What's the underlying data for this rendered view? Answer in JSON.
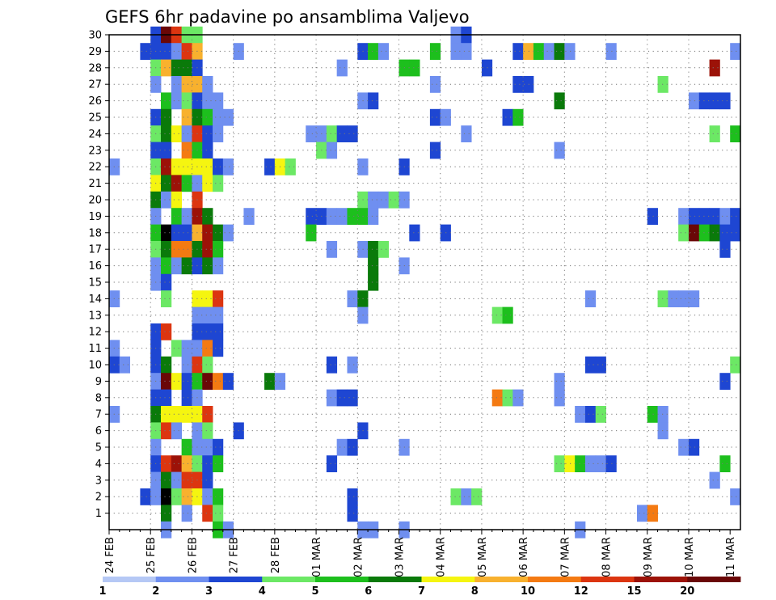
{
  "chart_data": {
    "type": "heatmap",
    "title": "GEFS 6hr padavine po ansamblima Valjevo",
    "xlabel": "",
    "ylabel": "",
    "y_ticks": [
      "1",
      "2",
      "3",
      "4",
      "5",
      "6",
      "7",
      "8",
      "9",
      "10",
      "11",
      "12",
      "13",
      "14",
      "15",
      "16",
      "17",
      "18",
      "19",
      "20",
      "21",
      "22",
      "23",
      "24",
      "25",
      "26",
      "27",
      "28",
      "29",
      "30"
    ],
    "x_ticks": [
      "24 FEB",
      "25 FEB",
      "26 FEB",
      "27 FEB",
      "28 FEB",
      "01 MAR",
      "02 MAR",
      "03 MAR",
      "04 MAR",
      "05 MAR",
      "06 MAR",
      "07 MAR",
      "08 MAR",
      "09 MAR",
      "10 MAR",
      "11 MAR"
    ],
    "time_step_hours": 6,
    "grid": true,
    "colorbar": {
      "bounds": [
        "1",
        "2",
        "3",
        "4",
        "5",
        "6",
        "7",
        "8",
        "10",
        "12",
        "15",
        "20"
      ],
      "colors": [
        "#b5c8f5",
        "#6f8ff0",
        "#1e46d2",
        "#6ce865",
        "#1dbf1d",
        "#0a7a0a",
        "#f5f510",
        "#f8b12e",
        "#f47a12",
        "#dc3510",
        "#9c1208",
        "#6a0707"
      ]
    },
    "cells": [
      [
        30,
        4,
        2
      ],
      [
        30,
        5,
        11
      ],
      [
        30,
        6,
        9
      ],
      [
        30,
        7,
        3
      ],
      [
        30,
        8,
        3
      ],
      [
        30,
        33,
        1
      ],
      [
        30,
        34,
        2
      ],
      [
        29,
        3,
        2
      ],
      [
        29,
        4,
        2
      ],
      [
        29,
        5,
        2
      ],
      [
        29,
        6,
        1
      ],
      [
        29,
        7,
        9
      ],
      [
        29,
        8,
        7
      ],
      [
        29,
        12,
        1
      ],
      [
        29,
        24,
        2
      ],
      [
        29,
        25,
        4
      ],
      [
        29,
        26,
        1
      ],
      [
        29,
        31,
        4
      ],
      [
        29,
        33,
        1
      ],
      [
        29,
        34,
        1
      ],
      [
        29,
        39,
        2
      ],
      [
        29,
        40,
        7
      ],
      [
        29,
        41,
        4
      ],
      [
        29,
        42,
        1
      ],
      [
        29,
        43,
        5
      ],
      [
        29,
        44,
        1
      ],
      [
        29,
        48,
        1
      ],
      [
        29,
        60,
        1
      ],
      [
        28,
        4,
        3
      ],
      [
        28,
        5,
        7
      ],
      [
        28,
        6,
        5
      ],
      [
        28,
        7,
        5
      ],
      [
        28,
        8,
        2
      ],
      [
        28,
        22,
        1
      ],
      [
        28,
        28,
        4
      ],
      [
        28,
        29,
        4
      ],
      [
        28,
        36,
        2
      ],
      [
        28,
        58,
        10
      ],
      [
        27,
        4,
        1
      ],
      [
        27,
        6,
        1
      ],
      [
        27,
        7,
        7
      ],
      [
        27,
        8,
        7
      ],
      [
        27,
        9,
        1
      ],
      [
        27,
        31,
        1
      ],
      [
        27,
        39,
        2
      ],
      [
        27,
        40,
        2
      ],
      [
        27,
        53,
        3
      ],
      [
        26,
        5,
        4
      ],
      [
        26,
        6,
        1
      ],
      [
        26,
        7,
        3
      ],
      [
        26,
        8,
        2
      ],
      [
        26,
        9,
        1
      ],
      [
        26,
        10,
        1
      ],
      [
        26,
        24,
        1
      ],
      [
        26,
        25,
        2
      ],
      [
        26,
        43,
        5
      ],
      [
        26,
        56,
        1
      ],
      [
        26,
        57,
        2
      ],
      [
        26,
        58,
        2
      ],
      [
        26,
        59,
        2
      ],
      [
        25,
        4,
        2
      ],
      [
        25,
        5,
        5
      ],
      [
        25,
        7,
        7
      ],
      [
        25,
        8,
        5
      ],
      [
        25,
        9,
        4
      ],
      [
        25,
        10,
        1
      ],
      [
        25,
        11,
        1
      ],
      [
        25,
        31,
        2
      ],
      [
        25,
        32,
        1
      ],
      [
        25,
        38,
        2
      ],
      [
        25,
        39,
        4
      ],
      [
        24,
        4,
        3
      ],
      [
        24,
        5,
        5
      ],
      [
        24,
        6,
        6
      ],
      [
        24,
        7,
        1
      ],
      [
        24,
        8,
        9
      ],
      [
        24,
        9,
        2
      ],
      [
        24,
        10,
        1
      ],
      [
        24,
        19,
        1
      ],
      [
        24,
        20,
        1
      ],
      [
        24,
        21,
        3
      ],
      [
        24,
        22,
        2
      ],
      [
        24,
        23,
        2
      ],
      [
        24,
        34,
        1
      ],
      [
        24,
        58,
        3
      ],
      [
        24,
        60,
        4
      ],
      [
        23,
        4,
        2
      ],
      [
        23,
        5,
        2
      ],
      [
        23,
        7,
        8
      ],
      [
        23,
        8,
        4
      ],
      [
        23,
        9,
        2
      ],
      [
        23,
        20,
        3
      ],
      [
        23,
        21,
        1
      ],
      [
        23,
        31,
        2
      ],
      [
        23,
        43,
        1
      ],
      [
        22,
        0,
        1
      ],
      [
        22,
        4,
        3
      ],
      [
        22,
        5,
        10
      ],
      [
        22,
        6,
        6
      ],
      [
        22,
        7,
        6
      ],
      [
        22,
        8,
        6
      ],
      [
        22,
        9,
        6
      ],
      [
        22,
        10,
        2
      ],
      [
        22,
        11,
        1
      ],
      [
        22,
        15,
        2
      ],
      [
        22,
        16,
        6
      ],
      [
        22,
        17,
        3
      ],
      [
        22,
        24,
        1
      ],
      [
        22,
        28,
        2
      ],
      [
        21,
        4,
        6
      ],
      [
        21,
        5,
        5
      ],
      [
        21,
        6,
        10
      ],
      [
        21,
        7,
        4
      ],
      [
        21,
        8,
        1
      ],
      [
        21,
        9,
        6
      ],
      [
        21,
        10,
        3
      ],
      [
        20,
        4,
        5
      ],
      [
        20,
        5,
        1
      ],
      [
        20,
        6,
        6
      ],
      [
        20,
        8,
        9
      ],
      [
        20,
        24,
        3
      ],
      [
        20,
        25,
        1
      ],
      [
        20,
        26,
        1
      ],
      [
        20,
        27,
        3
      ],
      [
        20,
        28,
        1
      ],
      [
        19,
        4,
        1
      ],
      [
        19,
        6,
        4
      ],
      [
        19,
        7,
        1
      ],
      [
        19,
        8,
        10
      ],
      [
        19,
        9,
        5
      ],
      [
        19,
        13,
        1
      ],
      [
        19,
        19,
        2
      ],
      [
        19,
        20,
        2
      ],
      [
        19,
        21,
        1
      ],
      [
        19,
        22,
        1
      ],
      [
        19,
        23,
        4
      ],
      [
        19,
        24,
        4
      ],
      [
        19,
        25,
        1
      ],
      [
        19,
        52,
        2
      ],
      [
        19,
        55,
        1
      ],
      [
        19,
        56,
        2
      ],
      [
        19,
        57,
        2
      ],
      [
        19,
        58,
        2
      ],
      [
        19,
        59,
        1
      ],
      [
        19,
        60,
        2
      ],
      [
        18,
        4,
        4
      ],
      [
        18,
        5,
        12
      ],
      [
        18,
        6,
        2
      ],
      [
        18,
        7,
        2
      ],
      [
        18,
        8,
        7
      ],
      [
        18,
        9,
        10
      ],
      [
        18,
        10,
        5
      ],
      [
        18,
        11,
        1
      ],
      [
        18,
        19,
        4
      ],
      [
        18,
        29,
        2
      ],
      [
        18,
        32,
        2
      ],
      [
        18,
        55,
        3
      ],
      [
        18,
        56,
        11
      ],
      [
        18,
        57,
        4
      ],
      [
        18,
        58,
        5
      ],
      [
        18,
        59,
        2
      ],
      [
        18,
        60,
        2
      ],
      [
        17,
        4,
        3
      ],
      [
        17,
        5,
        5
      ],
      [
        17,
        6,
        8
      ],
      [
        17,
        7,
        8
      ],
      [
        17,
        8,
        5
      ],
      [
        17,
        9,
        10
      ],
      [
        17,
        10,
        4
      ],
      [
        17,
        21,
        1
      ],
      [
        17,
        24,
        1
      ],
      [
        17,
        25,
        5
      ],
      [
        17,
        26,
        3
      ],
      [
        17,
        59,
        2
      ],
      [
        16,
        4,
        1
      ],
      [
        16,
        5,
        4
      ],
      [
        16,
        6,
        1
      ],
      [
        16,
        7,
        5
      ],
      [
        16,
        8,
        2
      ],
      [
        16,
        9,
        5
      ],
      [
        16,
        10,
        1
      ],
      [
        16,
        25,
        5
      ],
      [
        16,
        28,
        1
      ],
      [
        15,
        4,
        1
      ],
      [
        15,
        5,
        2
      ],
      [
        15,
        25,
        5
      ],
      [
        14,
        0,
        1
      ],
      [
        14,
        5,
        3
      ],
      [
        14,
        8,
        6
      ],
      [
        14,
        9,
        6
      ],
      [
        14,
        10,
        9
      ],
      [
        14,
        23,
        1
      ],
      [
        14,
        24,
        5
      ],
      [
        14,
        46,
        1
      ],
      [
        14,
        53,
        3
      ],
      [
        14,
        54,
        1
      ],
      [
        14,
        55,
        1
      ],
      [
        14,
        56,
        1
      ],
      [
        13,
        8,
        1
      ],
      [
        13,
        9,
        1
      ],
      [
        13,
        10,
        1
      ],
      [
        13,
        24,
        1
      ],
      [
        13,
        37,
        3
      ],
      [
        13,
        38,
        4
      ],
      [
        12,
        4,
        2
      ],
      [
        12,
        5,
        9
      ],
      [
        12,
        8,
        2
      ],
      [
        12,
        9,
        2
      ],
      [
        12,
        10,
        2
      ],
      [
        11,
        0,
        1
      ],
      [
        11,
        4,
        2
      ],
      [
        11,
        6,
        3
      ],
      [
        11,
        7,
        1
      ],
      [
        11,
        8,
        1
      ],
      [
        11,
        9,
        8
      ],
      [
        11,
        10,
        2
      ],
      [
        10,
        0,
        2
      ],
      [
        10,
        1,
        1
      ],
      [
        10,
        4,
        2
      ],
      [
        10,
        5,
        5
      ],
      [
        10,
        7,
        1
      ],
      [
        10,
        8,
        9
      ],
      [
        10,
        9,
        3
      ],
      [
        10,
        21,
        2
      ],
      [
        10,
        23,
        1
      ],
      [
        10,
        46,
        2
      ],
      [
        10,
        47,
        2
      ],
      [
        10,
        60,
        3
      ],
      [
        9,
        4,
        1
      ],
      [
        9,
        5,
        11
      ],
      [
        9,
        6,
        6
      ],
      [
        9,
        7,
        2
      ],
      [
        9,
        8,
        4
      ],
      [
        9,
        9,
        11
      ],
      [
        9,
        10,
        8
      ],
      [
        9,
        11,
        2
      ],
      [
        9,
        15,
        5
      ],
      [
        9,
        16,
        1
      ],
      [
        9,
        43,
        1
      ],
      [
        9,
        59,
        2
      ],
      [
        8,
        4,
        2
      ],
      [
        8,
        5,
        2
      ],
      [
        8,
        7,
        2
      ],
      [
        8,
        8,
        1
      ],
      [
        8,
        21,
        1
      ],
      [
        8,
        22,
        2
      ],
      [
        8,
        23,
        2
      ],
      [
        8,
        37,
        8
      ],
      [
        8,
        38,
        3
      ],
      [
        8,
        39,
        1
      ],
      [
        8,
        43,
        1
      ],
      [
        7,
        0,
        1
      ],
      [
        7,
        4,
        5
      ],
      [
        7,
        5,
        6
      ],
      [
        7,
        6,
        6
      ],
      [
        7,
        7,
        6
      ],
      [
        7,
        8,
        6
      ],
      [
        7,
        9,
        9
      ],
      [
        7,
        45,
        1
      ],
      [
        7,
        46,
        2
      ],
      [
        7,
        47,
        3
      ],
      [
        7,
        52,
        4
      ],
      [
        7,
        53,
        1
      ],
      [
        6,
        4,
        3
      ],
      [
        6,
        5,
        9
      ],
      [
        6,
        6,
        1
      ],
      [
        6,
        8,
        1
      ],
      [
        6,
        9,
        3
      ],
      [
        6,
        12,
        2
      ],
      [
        6,
        24,
        2
      ],
      [
        6,
        53,
        1
      ],
      [
        5,
        4,
        1
      ],
      [
        5,
        7,
        4
      ],
      [
        5,
        8,
        1
      ],
      [
        5,
        9,
        1
      ],
      [
        5,
        10,
        2
      ],
      [
        5,
        22,
        1
      ],
      [
        5,
        23,
        2
      ],
      [
        5,
        28,
        1
      ],
      [
        5,
        55,
        1
      ],
      [
        5,
        56,
        2
      ],
      [
        4,
        4,
        2
      ],
      [
        4,
        5,
        9
      ],
      [
        4,
        6,
        10
      ],
      [
        4,
        7,
        7
      ],
      [
        4,
        8,
        3
      ],
      [
        4,
        9,
        2
      ],
      [
        4,
        10,
        4
      ],
      [
        4,
        21,
        2
      ],
      [
        4,
        43,
        3
      ],
      [
        4,
        44,
        6
      ],
      [
        4,
        45,
        4
      ],
      [
        4,
        46,
        1
      ],
      [
        4,
        47,
        1
      ],
      [
        4,
        48,
        2
      ],
      [
        4,
        59,
        4
      ],
      [
        3,
        4,
        1
      ],
      [
        3,
        5,
        5
      ],
      [
        3,
        6,
        1
      ],
      [
        3,
        7,
        9
      ],
      [
        3,
        8,
        9
      ],
      [
        3,
        9,
        2
      ],
      [
        3,
        58,
        1
      ],
      [
        2,
        3,
        2
      ],
      [
        2,
        4,
        1
      ],
      [
        2,
        5,
        12
      ],
      [
        2,
        6,
        3
      ],
      [
        2,
        7,
        7
      ],
      [
        2,
        8,
        6
      ],
      [
        2,
        9,
        1
      ],
      [
        2,
        10,
        4
      ],
      [
        2,
        23,
        2
      ],
      [
        2,
        33,
        3
      ],
      [
        2,
        34,
        1
      ],
      [
        2,
        35,
        3
      ],
      [
        2,
        60,
        1
      ],
      [
        1,
        5,
        5
      ],
      [
        1,
        7,
        1
      ],
      [
        1,
        9,
        9
      ],
      [
        1,
        10,
        3
      ],
      [
        1,
        23,
        2
      ],
      [
        1,
        51,
        1
      ],
      [
        1,
        52,
        8
      ],
      [
        0,
        5,
        1
      ],
      [
        0,
        10,
        4
      ],
      [
        0,
        11,
        1
      ],
      [
        0,
        24,
        1
      ],
      [
        0,
        25,
        1
      ],
      [
        0,
        28,
        1
      ],
      [
        0,
        45,
        1
      ]
    ]
  }
}
